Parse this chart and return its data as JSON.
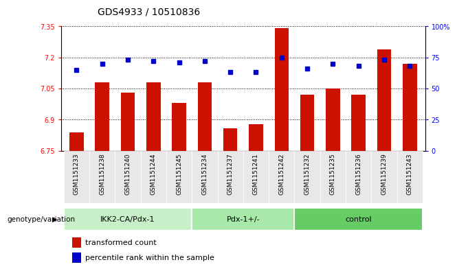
{
  "title": "GDS4933 / 10510836",
  "samples": [
    "GSM1151233",
    "GSM1151238",
    "GSM1151240",
    "GSM1151244",
    "GSM1151245",
    "GSM1151234",
    "GSM1151237",
    "GSM1151241",
    "GSM1151242",
    "GSM1151232",
    "GSM1151235",
    "GSM1151236",
    "GSM1151239",
    "GSM1151243"
  ],
  "bar_values": [
    6.84,
    7.08,
    7.03,
    7.08,
    6.98,
    7.08,
    6.86,
    6.88,
    7.34,
    7.02,
    7.05,
    7.02,
    7.24,
    7.17
  ],
  "dot_values": [
    65,
    70,
    73,
    72,
    71,
    72,
    63,
    63,
    75,
    66,
    70,
    68,
    73,
    68
  ],
  "groups": [
    {
      "label": "IKK2-CA/Pdx-1",
      "start": 0,
      "end": 5,
      "color": "#c8f0c8"
    },
    {
      "label": "Pdx-1+/-",
      "start": 5,
      "end": 9,
      "color": "#a8e8a8"
    },
    {
      "label": "control",
      "start": 9,
      "end": 14,
      "color": "#66cc66"
    }
  ],
  "ylim_left": [
    6.75,
    7.35
  ],
  "ylim_right": [
    0,
    100
  ],
  "yticks_left": [
    6.75,
    6.9,
    7.05,
    7.2,
    7.35
  ],
  "yticks_right": [
    0,
    25,
    50,
    75,
    100
  ],
  "bar_color": "#cc1100",
  "dot_color": "#0000cc",
  "legend_bar_label": "transformed count",
  "legend_dot_label": "percentile rank within the sample",
  "group_label_prefix": "genotype/variation",
  "title_fontsize": 10,
  "tick_fontsize": 7,
  "legend_fontsize": 8
}
